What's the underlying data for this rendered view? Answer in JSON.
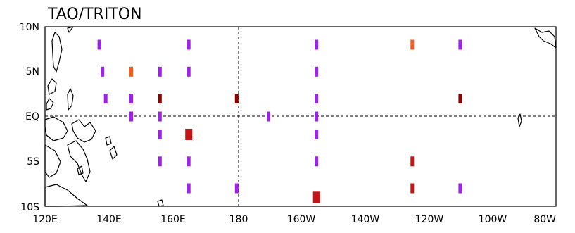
{
  "title": "TAO/TRITON",
  "lat_labels": [
    "10N",
    "5N",
    "EQ",
    "5S",
    "10S"
  ],
  "lon_labels": [
    "120E",
    "140E",
    "160E",
    "180",
    "160W",
    "140W",
    "120W",
    "100W",
    "80W"
  ],
  "map_extent": {
    "lon_min": 120,
    "lon_max": 280,
    "lat_min": -10,
    "lat_max": 10
  },
  "reference_lines": {
    "dateline_lon": 180,
    "equator_lat": 0,
    "style": "dashed"
  },
  "status_colors": {
    "purple": "#a020f0",
    "orange": "#ff5a1e",
    "red": "#c81414",
    "dark_red": "#8c0000"
  },
  "buoys": [
    {
      "lon": 137,
      "lat": 8,
      "status": "purple"
    },
    {
      "lon": 138,
      "lat": 5,
      "status": "purple"
    },
    {
      "lon": 139,
      "lat": 2,
      "status": "purple"
    },
    {
      "lon": 147,
      "lat": 2,
      "status": "purple"
    },
    {
      "lon": 147,
      "lat": 5,
      "status": "orange"
    },
    {
      "lon": 147,
      "lat": 0,
      "status": "purple"
    },
    {
      "lon": 156,
      "lat": 5,
      "status": "purple"
    },
    {
      "lon": 156,
      "lat": 2,
      "status": "dark_red"
    },
    {
      "lon": 156,
      "lat": 0,
      "status": "purple"
    },
    {
      "lon": 156,
      "lat": -2,
      "status": "purple"
    },
    {
      "lon": 156,
      "lat": -5,
      "status": "purple"
    },
    {
      "lon": 165,
      "lat": 8,
      "status": "purple"
    },
    {
      "lon": 165,
      "lat": 5,
      "status": "purple"
    },
    {
      "lon": 165,
      "lat": -2,
      "status": "red",
      "large": true
    },
    {
      "lon": 165,
      "lat": -5,
      "status": "purple"
    },
    {
      "lon": 165,
      "lat": -8,
      "status": "purple"
    },
    {
      "lon": 180,
      "lat": 2,
      "status": "dark_red"
    },
    {
      "lon": 180,
      "lat": -8,
      "status": "purple"
    },
    {
      "lon": 190,
      "lat": 0,
      "status": "purple"
    },
    {
      "lon": 205,
      "lat": 8,
      "status": "purple"
    },
    {
      "lon": 205,
      "lat": 5,
      "status": "purple"
    },
    {
      "lon": 205,
      "lat": 2,
      "status": "purple"
    },
    {
      "lon": 205,
      "lat": 0,
      "status": "purple"
    },
    {
      "lon": 205,
      "lat": -2,
      "status": "purple"
    },
    {
      "lon": 205,
      "lat": -5,
      "status": "purple"
    },
    {
      "lon": 205,
      "lat": -9,
      "status": "red",
      "large": true
    },
    {
      "lon": 235,
      "lat": 8,
      "status": "orange"
    },
    {
      "lon": 235,
      "lat": -5,
      "status": "red"
    },
    {
      "lon": 235,
      "lat": -8,
      "status": "red"
    },
    {
      "lon": 250,
      "lat": 8,
      "status": "purple"
    },
    {
      "lon": 250,
      "lat": 2,
      "status": "dark_red"
    },
    {
      "lon": 250,
      "lat": -8,
      "status": "purple"
    }
  ]
}
